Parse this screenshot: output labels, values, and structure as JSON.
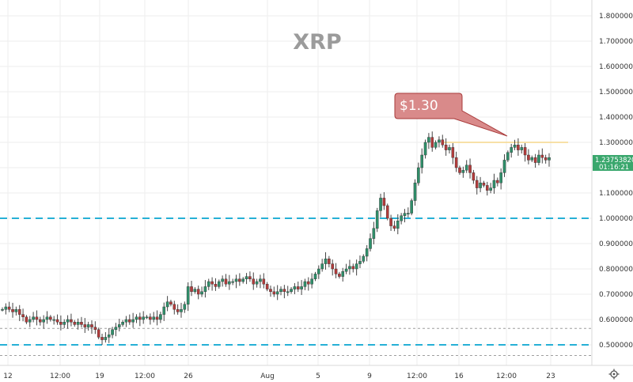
{
  "chart_data": {
    "type": "candlestick",
    "title": "XRP",
    "y_axis": {
      "range": [
        0.46,
        1.86
      ],
      "ticks": [
        "1.80000000",
        "1.70000000",
        "1.60000000",
        "1.50000000",
        "1.40000000",
        "1.30000000",
        "1.20000000",
        "1.10000000",
        "1.00000000",
        "0.90000000",
        "0.80000000",
        "0.70000000",
        "0.60000000",
        "0.50000000"
      ],
      "tick_values": [
        1.8,
        1.7,
        1.6,
        1.5,
        1.4,
        1.3,
        1.2,
        1.1,
        1.0,
        0.9,
        0.8,
        0.7,
        0.6,
        0.5
      ]
    },
    "x_axis": {
      "ticks": [
        "12",
        "12:00",
        "19",
        "12:00",
        "26",
        "Aug",
        "5",
        "9",
        "12:00",
        "16",
        "12:00",
        "23"
      ]
    },
    "grid": true,
    "horizontal_levels": [
      {
        "value": 1.0,
        "style": "dashed",
        "color": "#26b0d6"
      },
      {
        "value": 0.5,
        "style": "dashed",
        "color": "#26b0d6"
      },
      {
        "value": 0.565,
        "style": "dotted",
        "color": "#9e9e9e"
      },
      {
        "value": 0.458,
        "style": "dotted",
        "color": "#9e9e9e"
      }
    ],
    "resistance_line": {
      "value": 1.3,
      "color": "#f5d78a"
    },
    "callout": {
      "text": "$1.30",
      "color": "#d98a8a"
    },
    "last_price": {
      "value": "1.23753820",
      "countdown": "01:16:21",
      "color": "#3aa76d"
    },
    "series": [
      {
        "values": [
          0.64,
          0.65,
          0.64,
          0.63,
          0.64,
          0.62,
          0.61,
          0.59,
          0.6,
          0.61,
          0.6,
          0.59,
          0.6,
          0.61,
          0.6,
          0.6,
          0.59,
          0.58,
          0.59,
          0.6,
          0.59,
          0.58,
          0.59,
          0.58,
          0.57,
          0.58,
          0.57,
          0.56,
          0.53,
          0.52,
          0.53,
          0.54,
          0.56,
          0.57,
          0.58,
          0.59,
          0.6,
          0.59,
          0.6,
          0.61,
          0.6,
          0.61,
          0.61,
          0.6,
          0.61,
          0.6,
          0.62,
          0.65,
          0.67,
          0.66,
          0.64,
          0.63,
          0.64,
          0.66,
          0.73,
          0.71,
          0.72,
          0.7,
          0.71,
          0.73,
          0.75,
          0.74,
          0.73,
          0.75,
          0.76,
          0.74,
          0.75,
          0.75,
          0.76,
          0.75,
          0.76,
          0.77,
          0.76,
          0.74,
          0.75,
          0.76,
          0.74,
          0.72,
          0.71,
          0.7,
          0.71,
          0.72,
          0.71,
          0.71,
          0.72,
          0.73,
          0.72,
          0.73,
          0.75,
          0.74,
          0.76,
          0.78,
          0.8,
          0.82,
          0.84,
          0.82,
          0.8,
          0.78,
          0.77,
          0.79,
          0.8,
          0.81,
          0.8,
          0.82,
          0.83,
          0.85,
          0.88,
          0.92,
          0.96,
          1.03,
          1.08,
          1.05,
          1.0,
          0.97,
          0.96,
          0.99,
          1.01,
          1.02,
          1.02,
          1.07,
          1.14,
          1.2,
          1.25,
          1.3,
          1.32,
          1.28,
          1.3,
          1.31,
          1.29,
          1.27,
          1.28,
          1.24,
          1.2,
          1.18,
          1.19,
          1.21,
          1.18,
          1.15,
          1.12,
          1.14,
          1.13,
          1.11,
          1.12,
          1.15,
          1.14,
          1.18,
          1.23,
          1.26,
          1.28,
          1.29,
          1.27,
          1.28,
          1.25,
          1.23,
          1.24,
          1.22,
          1.25,
          1.24,
          1.23,
          1.24
        ]
      }
    ]
  }
}
